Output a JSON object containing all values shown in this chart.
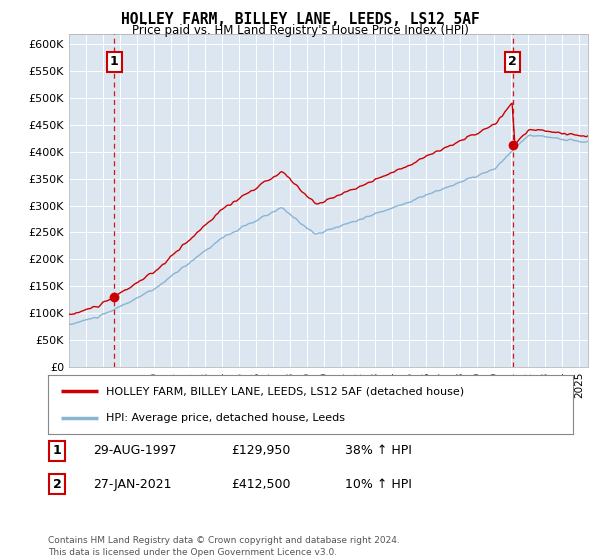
{
  "title": "HOLLEY FARM, BILLEY LANE, LEEDS, LS12 5AF",
  "subtitle": "Price paid vs. HM Land Registry's House Price Index (HPI)",
  "plot_bg_color": "#dce6f1",
  "ylim": [
    0,
    620000
  ],
  "yticks": [
    0,
    50000,
    100000,
    150000,
    200000,
    250000,
    300000,
    350000,
    400000,
    450000,
    500000,
    550000,
    600000
  ],
  "ytick_labels": [
    "£0",
    "£50K",
    "£100K",
    "£150K",
    "£200K",
    "£250K",
    "£300K",
    "£350K",
    "£400K",
    "£450K",
    "£500K",
    "£550K",
    "£600K"
  ],
  "xmin": 1995.0,
  "xmax": 2025.5,
  "hpi_color": "#8ab4d4",
  "price_color": "#cc0000",
  "marker_color": "#cc0000",
  "vline_color": "#cc0000",
  "t1": 1997.65,
  "p1": 129950,
  "t2": 2021.07,
  "p2": 412500,
  "annotation1_label": "1",
  "annotation2_label": "2",
  "legend_line1": "HOLLEY FARM, BILLEY LANE, LEEDS, LS12 5AF (detached house)",
  "legend_line2": "HPI: Average price, detached house, Leeds",
  "table_row1": [
    "1",
    "29-AUG-1997",
    "£129,950",
    "38% ↑ HPI"
  ],
  "table_row2": [
    "2",
    "27-JAN-2021",
    "£412,500",
    "10% ↑ HPI"
  ],
  "footer": "Contains HM Land Registry data © Crown copyright and database right 2024.\nThis data is licensed under the Open Government Licence v3.0."
}
